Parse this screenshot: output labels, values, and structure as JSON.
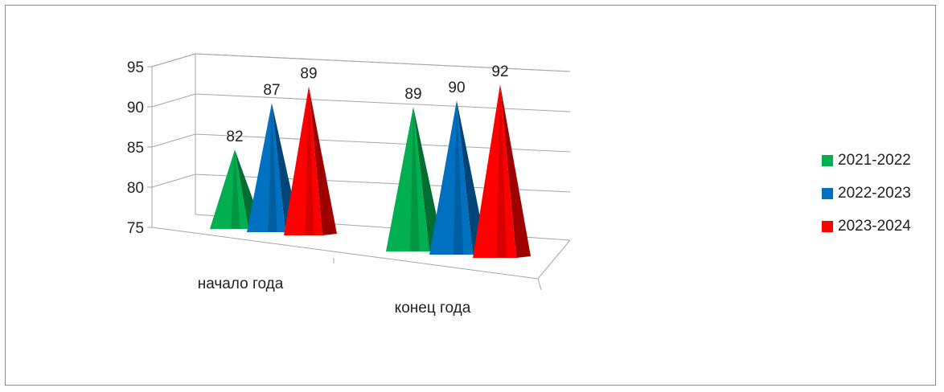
{
  "chart_data": {
    "type": "bar",
    "style": "3d-pyramid",
    "categories": [
      "начало года",
      "конец года"
    ],
    "series": [
      {
        "name": "2021-2022",
        "color": "#00b050",
        "values": [
          82,
          89
        ]
      },
      {
        "name": "2022-2023",
        "color": "#0070c0",
        "values": [
          87,
          90
        ]
      },
      {
        "name": "2023-2024",
        "color": "#ff0000",
        "values": [
          89,
          92
        ]
      }
    ],
    "yticks": [
      "75",
      "80",
      "85",
      "90",
      "95"
    ],
    "ylim": [
      75,
      95
    ],
    "grid": true,
    "legend": "right"
  }
}
